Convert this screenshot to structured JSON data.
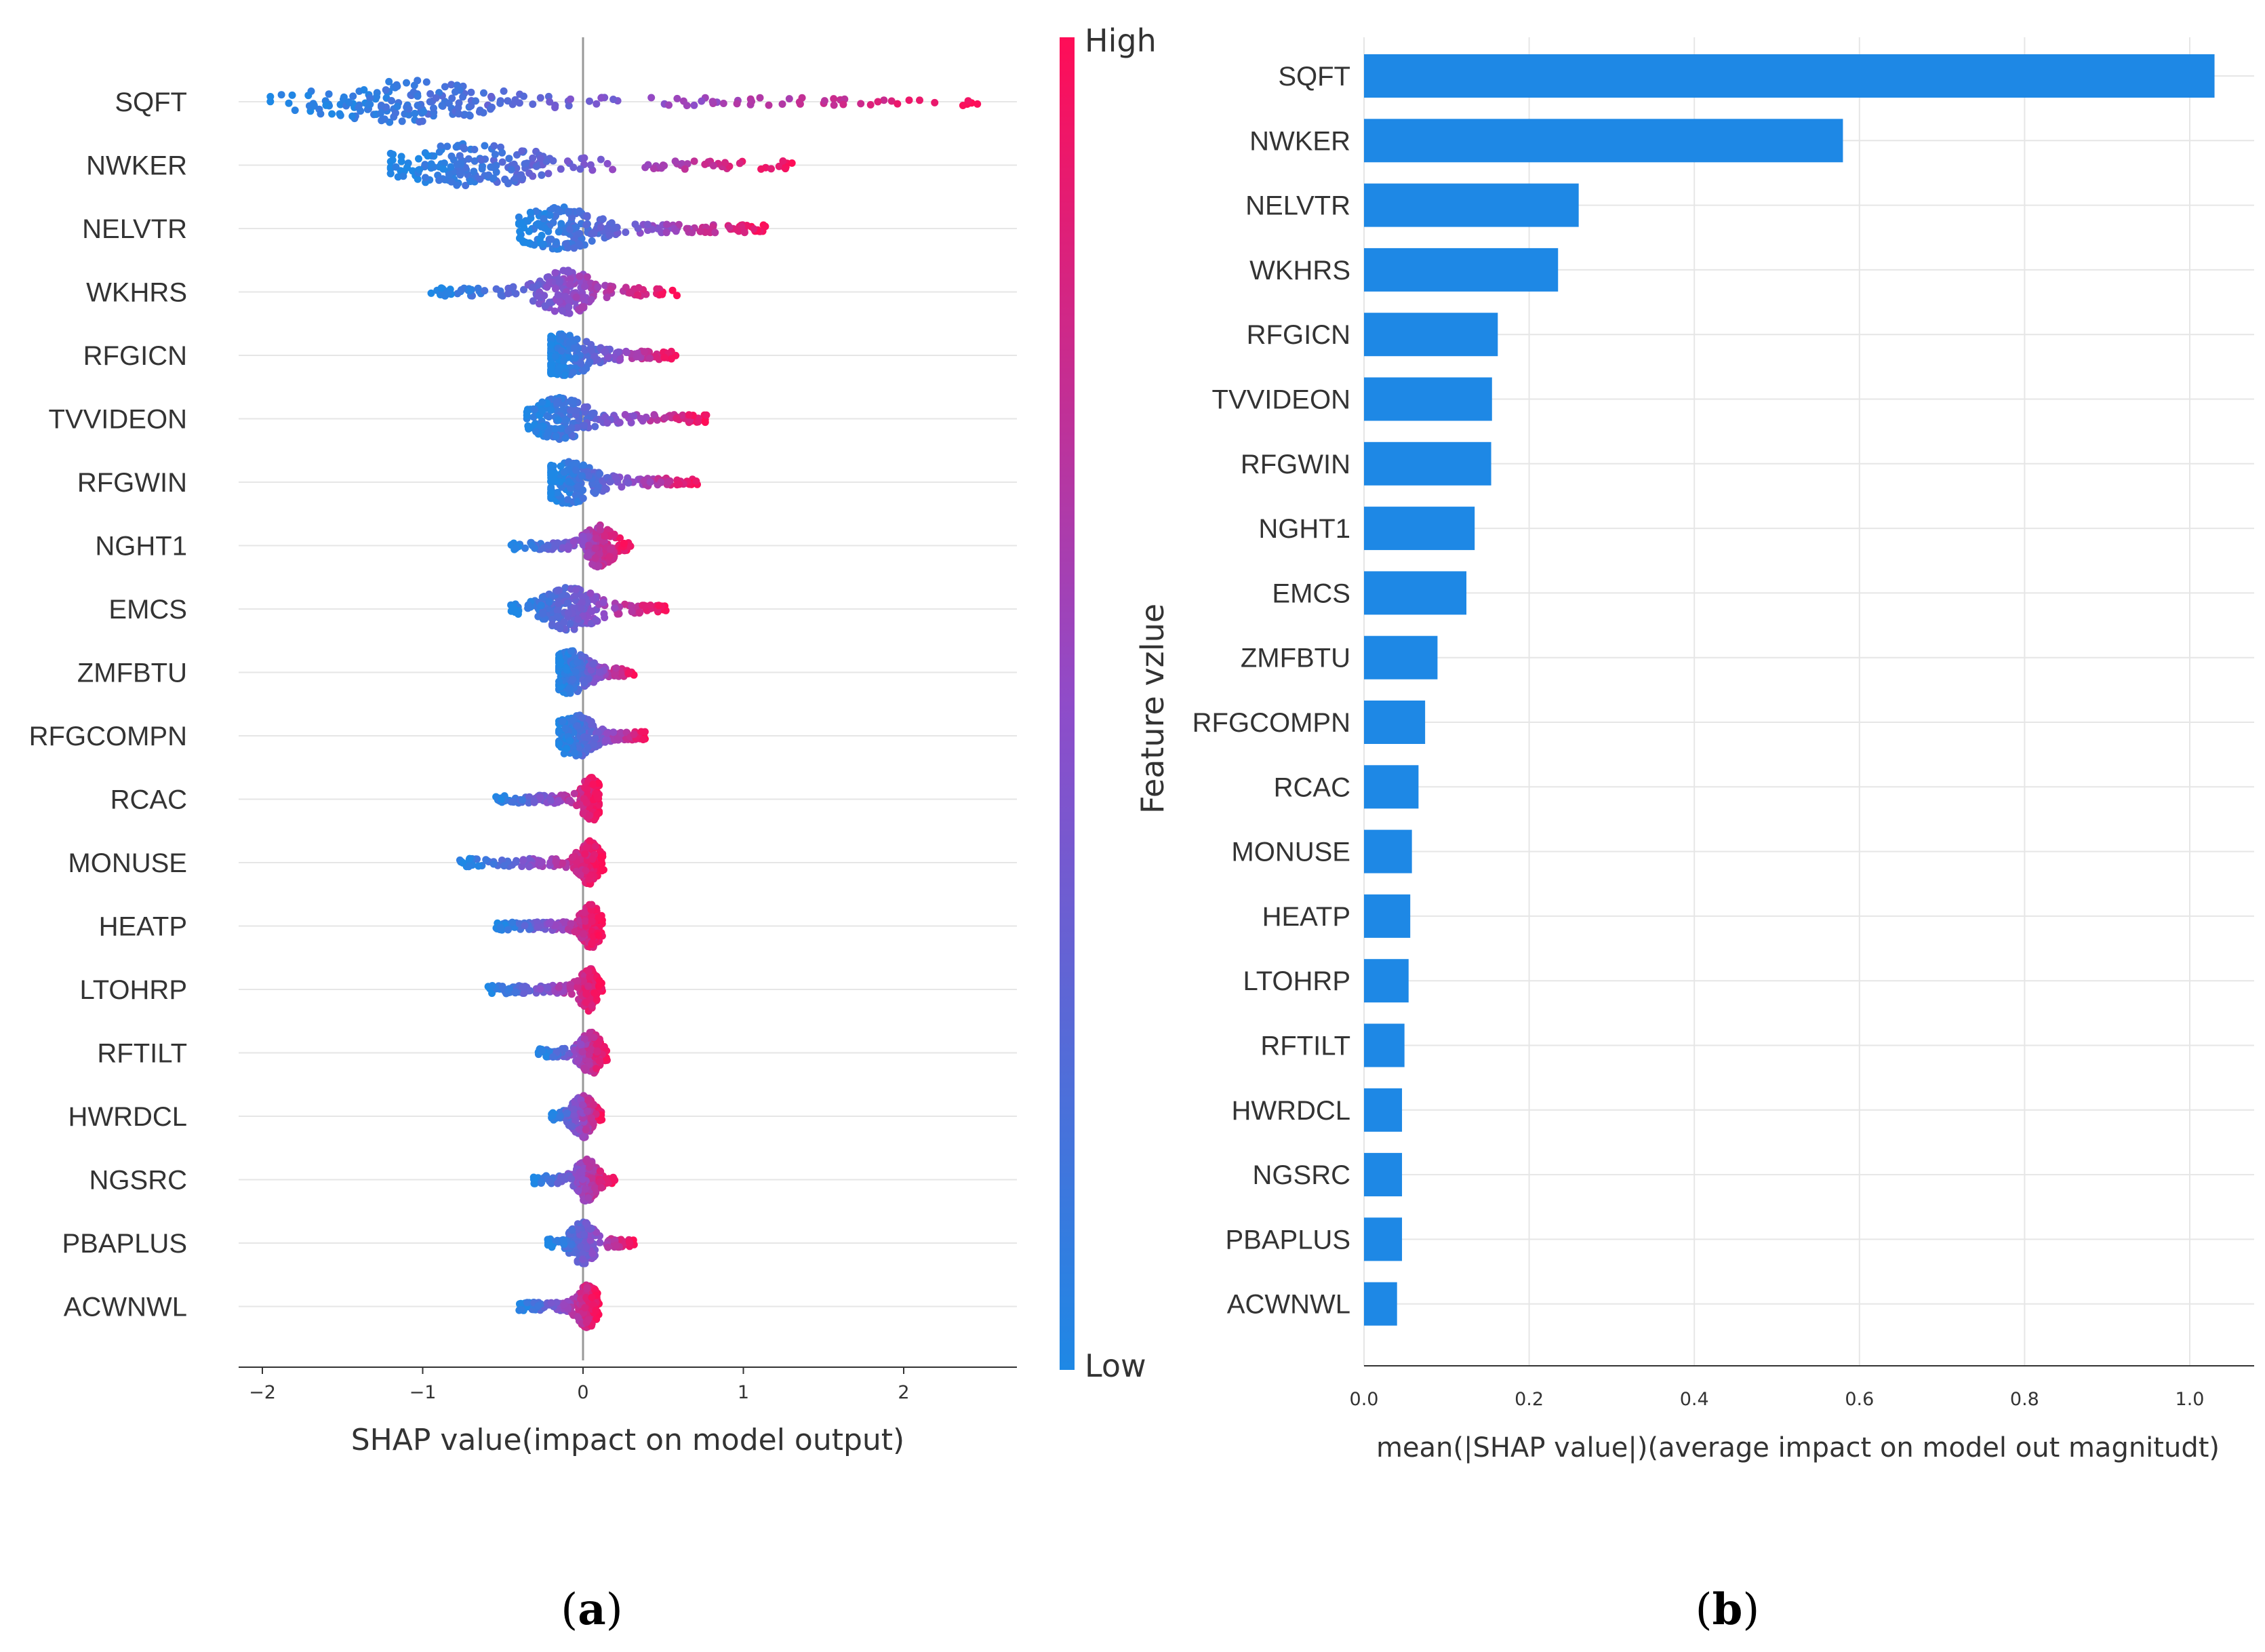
{
  "chart_data": [
    {
      "type": "scatter",
      "panel_label": "(a)",
      "panel_paren_open": "(",
      "panel_letter": "a",
      "panel_paren_close": ")",
      "title": "",
      "xlabel": "SHAP value(impact on model output)",
      "ylabel": "",
      "xlim": [
        -2.2,
        2.7
      ],
      "xticks": [
        -2,
        -1,
        0,
        1,
        2
      ],
      "xtick_labels": [
        "−2",
        "−1",
        "0",
        "1",
        "2"
      ],
      "grid": true,
      "colorbar": {
        "label": "Feature vzlue",
        "high_label": "High",
        "low_label": "Low",
        "low_color": "#1E88E5",
        "mid_color": "#8F4CC9",
        "high_color": "#FF0D57"
      },
      "features": [
        {
          "name": "SQFT",
          "min": -1.95,
          "max": 2.5,
          "center": -1.1,
          "spread": 1.0
        },
        {
          "name": "NWKER",
          "min": -1.2,
          "max": 1.35,
          "center": -0.7,
          "spread": 0.9
        },
        {
          "name": "NELVTR",
          "min": -0.4,
          "max": 1.15,
          "center": -0.15,
          "spread": 0.45
        },
        {
          "name": "WKHRS",
          "min": -0.95,
          "max": 0.62,
          "center": -0.1,
          "spread": 0.3
        },
        {
          "name": "RFGICN",
          "min": -0.2,
          "max": 0.58,
          "center": -0.12,
          "spread": 0.3
        },
        {
          "name": "TVVIDEON",
          "min": -0.35,
          "max": 0.78,
          "center": -0.15,
          "spread": 0.3
        },
        {
          "name": "RFGWIN",
          "min": -0.2,
          "max": 0.72,
          "center": -0.1,
          "spread": 0.3
        },
        {
          "name": "NGHT1",
          "min": -0.45,
          "max": 0.3,
          "center": 0.1,
          "spread": 0.15
        },
        {
          "name": "EMCS",
          "min": -0.45,
          "max": 0.52,
          "center": -0.08,
          "spread": 0.3
        },
        {
          "name": "ZMFBTU",
          "min": -0.15,
          "max": 0.32,
          "center": -0.08,
          "spread": 0.2
        },
        {
          "name": "RFGCOMPN",
          "min": -0.15,
          "max": 0.4,
          "center": -0.05,
          "spread": 0.2
        },
        {
          "name": "RCAC",
          "min": -0.55,
          "max": 0.1,
          "center": 0.05,
          "spread": 0.1
        },
        {
          "name": "MONUSE",
          "min": -0.78,
          "max": 0.13,
          "center": 0.04,
          "spread": 0.1
        },
        {
          "name": "HEATP",
          "min": -0.55,
          "max": 0.12,
          "center": 0.05,
          "spread": 0.1
        },
        {
          "name": "LTOHRP",
          "min": -0.6,
          "max": 0.12,
          "center": 0.04,
          "spread": 0.1
        },
        {
          "name": "RFTILT",
          "min": -0.28,
          "max": 0.15,
          "center": 0.05,
          "spread": 0.1
        },
        {
          "name": "HWRDCL",
          "min": -0.2,
          "max": 0.12,
          "center": 0.0,
          "spread": 0.1
        },
        {
          "name": "NGSRC",
          "min": -0.32,
          "max": 0.2,
          "center": 0.02,
          "spread": 0.1
        },
        {
          "name": "PBAPLUS",
          "min": -0.22,
          "max": 0.32,
          "center": 0.0,
          "spread": 0.12
        },
        {
          "name": "ACWNWL",
          "min": -0.4,
          "max": 0.1,
          "center": 0.03,
          "spread": 0.1
        }
      ]
    },
    {
      "type": "bar",
      "orientation": "horizontal",
      "panel_label": "(b)",
      "panel_paren_open": "(",
      "panel_letter": "b",
      "panel_paren_close": ")",
      "title": "",
      "xlabel": "mean(|SHAP value|)(average impact on model out magnitudt)",
      "ylabel": "",
      "xlim": [
        0,
        1.07
      ],
      "xticks": [
        0.0,
        0.2,
        0.4,
        0.6,
        0.8,
        1.0
      ],
      "xtick_labels": [
        "0.0",
        "0.2",
        "0.4",
        "0.6",
        "0.8",
        "1.0"
      ],
      "grid": true,
      "bar_color": "#1E88E5",
      "categories": [
        "SQFT",
        "NWKER",
        "NELVTR",
        "WKHRS",
        "RFGICN",
        "TVVIDEON",
        "RFGWIN",
        "NGHT1",
        "EMCS",
        "ZMFBTU",
        "RFGCOMPN",
        "RCAC",
        "MONUSE",
        "HEATP",
        "LTOHRP",
        "RFTILT",
        "HWRDCL",
        "NGSRC",
        "PBAPLUS",
        "ACWNWL"
      ],
      "values": [
        1.03,
        0.58,
        0.26,
        0.235,
        0.162,
        0.155,
        0.154,
        0.134,
        0.124,
        0.089,
        0.074,
        0.066,
        0.058,
        0.056,
        0.054,
        0.049,
        0.046,
        0.046,
        0.046,
        0.04
      ]
    }
  ]
}
